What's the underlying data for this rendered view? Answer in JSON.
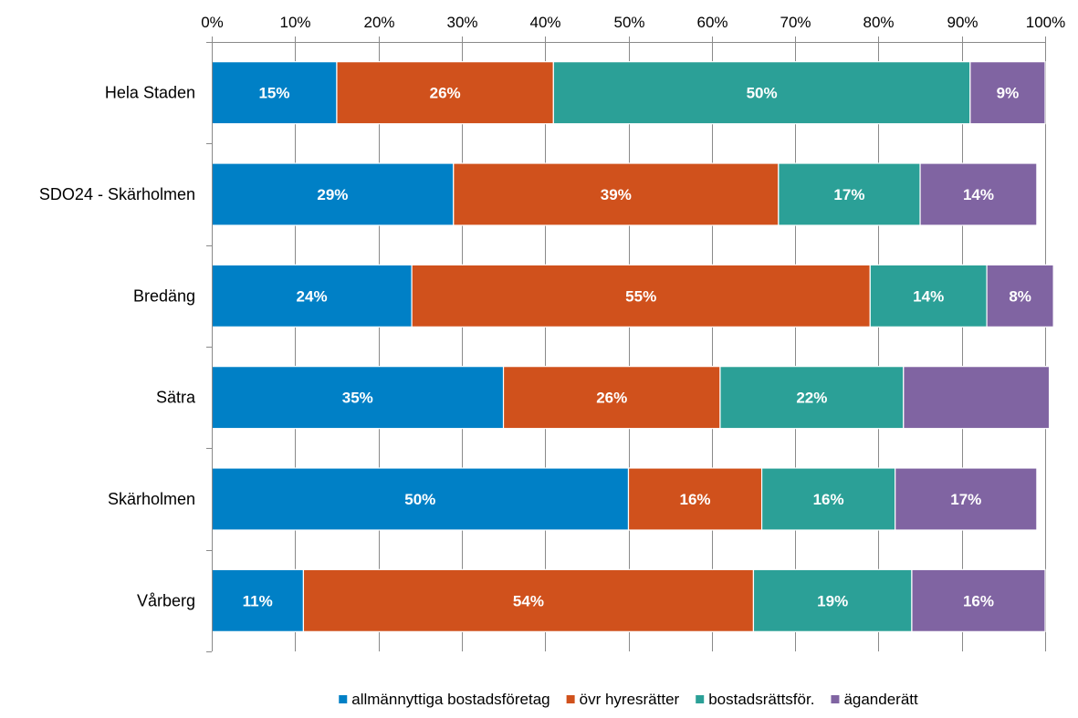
{
  "chart_data": {
    "type": "bar",
    "orientation": "horizontal",
    "stacked": "percent",
    "categories": [
      "Hela Staden",
      "SDO24 - Skärholmen",
      "Bredäng",
      "Sätra",
      "Skärholmen",
      "Vårberg"
    ],
    "series": [
      {
        "name": "allmännyttiga bostadsföretag",
        "color": "#0080C6",
        "values": [
          15,
          29,
          24,
          35,
          50,
          11
        ],
        "labels": [
          "15%",
          "29%",
          "24%",
          "35%",
          "50%",
          "11%"
        ]
      },
      {
        "name": "övr hyresrätter",
        "color": "#D0511C",
        "values": [
          26,
          39,
          55,
          26,
          16,
          54
        ],
        "labels": [
          "26%",
          "39%",
          "55%",
          "26%",
          "16%",
          "54%"
        ]
      },
      {
        "name": "bostadsrättsför.",
        "color": "#2BA097",
        "values": [
          50,
          17,
          14,
          22,
          16,
          19
        ],
        "labels": [
          "50%",
          "17%",
          "14%",
          "22%",
          "16%",
          "19%"
        ]
      },
      {
        "name": "äganderätt",
        "color": "#8064A2",
        "values": [
          9,
          14,
          8,
          17.5,
          17,
          16
        ],
        "labels": [
          "9%",
          "14%",
          "8%",
          "",
          "17%",
          "16%"
        ]
      }
    ],
    "x_ticks": [
      "0%",
      "10%",
      "20%",
      "30%",
      "40%",
      "50%",
      "60%",
      "70%",
      "80%",
      "90%",
      "100%"
    ],
    "xlim": [
      0,
      100
    ],
    "x_axis_position": "top",
    "grid": true,
    "legend_position": "bottom",
    "title": "",
    "xlabel": "",
    "ylabel": ""
  }
}
